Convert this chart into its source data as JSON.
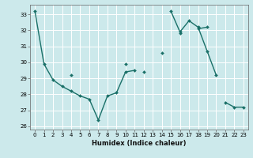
{
  "xlabel": "Humidex (Indice chaleur)",
  "bg_color": "#cce9eb",
  "line_color": "#1a7068",
  "grid_color": "#ffffff",
  "xlim": [
    -0.5,
    23.5
  ],
  "ylim": [
    25.8,
    33.6
  ],
  "yticks": [
    26,
    27,
    28,
    29,
    30,
    31,
    32,
    33
  ],
  "xticks": [
    0,
    1,
    2,
    3,
    4,
    5,
    6,
    7,
    8,
    9,
    10,
    11,
    12,
    13,
    14,
    15,
    16,
    17,
    18,
    19,
    20,
    21,
    22,
    23
  ],
  "series": [
    [
      33.2,
      29.9,
      28.9,
      28.5,
      28.2,
      27.9,
      27.7,
      26.4,
      27.9,
      28.1,
      29.4,
      29.5,
      null,
      null,
      null,
      null,
      null,
      null,
      null,
      null,
      null,
      null,
      null,
      null
    ],
    [
      null,
      null,
      null,
      null,
      null,
      null,
      null,
      null,
      null,
      null,
      null,
      null,
      null,
      null,
      null,
      33.2,
      31.9,
      32.6,
      32.2,
      30.7,
      29.2,
      null,
      null,
      null
    ],
    [
      null,
      null,
      null,
      null,
      29.2,
      null,
      null,
      null,
      null,
      null,
      29.9,
      null,
      29.4,
      null,
      30.6,
      null,
      31.8,
      null,
      32.1,
      32.2,
      null,
      null,
      null,
      null
    ],
    [
      null,
      null,
      null,
      null,
      null,
      null,
      null,
      null,
      null,
      null,
      null,
      null,
      null,
      null,
      null,
      null,
      null,
      null,
      null,
      null,
      null,
      27.5,
      27.2,
      27.2
    ]
  ],
  "marker": "D",
  "markersize": 2.0,
  "linewidth": 1.0
}
